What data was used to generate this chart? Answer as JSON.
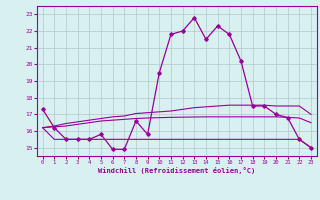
{
  "x": [
    0,
    1,
    2,
    3,
    4,
    5,
    6,
    7,
    8,
    9,
    10,
    11,
    12,
    13,
    14,
    15,
    16,
    17,
    18,
    19,
    20,
    21,
    22,
    23
  ],
  "line1": [
    17.3,
    16.2,
    15.5,
    15.5,
    15.5,
    15.8,
    14.9,
    14.9,
    16.6,
    15.8,
    19.5,
    21.8,
    22.0,
    22.8,
    21.5,
    22.3,
    21.8,
    20.2,
    17.5,
    17.5,
    17.0,
    16.8,
    15.5,
    15.0
  ],
  "line2": [
    16.2,
    15.5,
    15.5,
    15.5,
    15.5,
    15.5,
    15.5,
    15.5,
    15.5,
    15.5,
    15.5,
    15.5,
    15.5,
    15.5,
    15.5,
    15.5,
    15.5,
    15.5,
    15.5,
    15.5,
    15.5,
    15.5,
    15.5,
    15.0
  ],
  "line3": [
    16.2,
    16.3,
    16.45,
    16.55,
    16.65,
    16.75,
    16.85,
    16.9,
    17.05,
    17.1,
    17.15,
    17.2,
    17.3,
    17.4,
    17.45,
    17.5,
    17.55,
    17.55,
    17.55,
    17.55,
    17.5,
    17.5,
    17.5,
    17.0
  ],
  "line4": [
    16.2,
    16.25,
    16.3,
    16.4,
    16.5,
    16.6,
    16.65,
    16.7,
    16.75,
    16.78,
    16.8,
    16.82,
    16.83,
    16.84,
    16.85,
    16.85,
    16.85,
    16.85,
    16.85,
    16.85,
    16.85,
    16.82,
    16.78,
    16.5
  ],
  "color": "#990099",
  "bg_color": "#d8f0f0",
  "grid_color": "#b0c8c8",
  "xlabel": "Windchill (Refroidissement éolien,°C)",
  "ylim": [
    14.5,
    23.5
  ],
  "xlim": [
    -0.5,
    23.5
  ],
  "yticks": [
    15,
    16,
    17,
    18,
    19,
    20,
    21,
    22,
    23
  ],
  "xticks": [
    0,
    1,
    2,
    3,
    4,
    5,
    6,
    7,
    8,
    9,
    10,
    11,
    12,
    13,
    14,
    15,
    16,
    17,
    18,
    19,
    20,
    21,
    22,
    23
  ]
}
